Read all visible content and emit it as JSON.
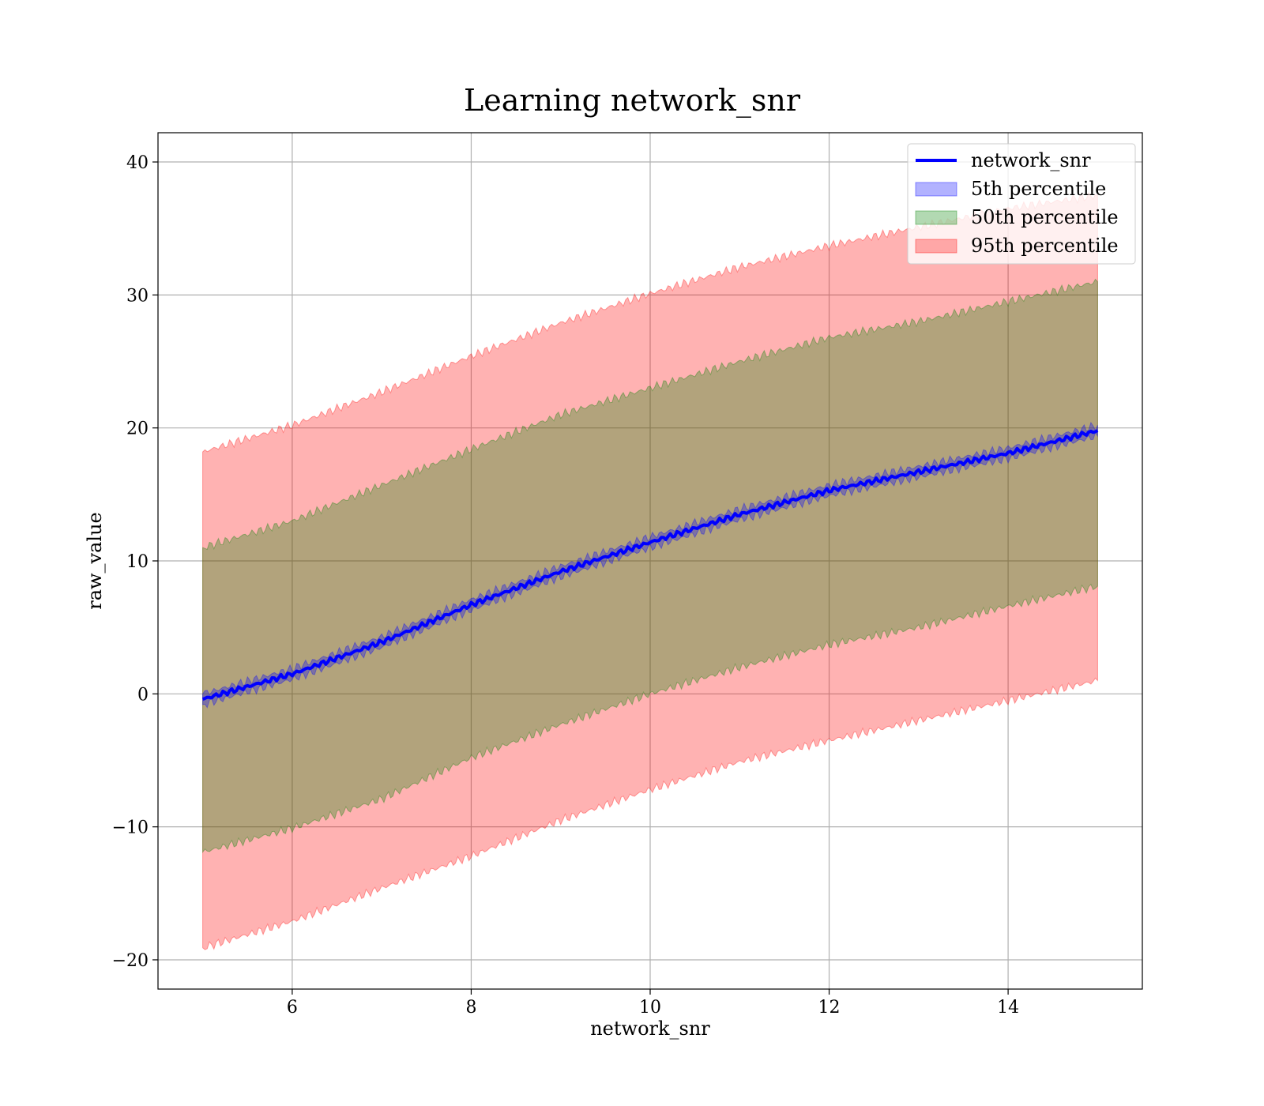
{
  "chart_data": {
    "type": "area",
    "title": "Learning network_snr",
    "xlabel": "network_snr",
    "ylabel": "raw_value",
    "xlim": [
      4.5,
      15.5
    ],
    "ylim": [
      -22.2,
      42.2
    ],
    "xticks": [
      6,
      8,
      10,
      12,
      14
    ],
    "yticks": [
      -20,
      -10,
      0,
      10,
      20,
      30,
      40
    ],
    "grid": true,
    "legend_position": "top-right",
    "x": [
      5,
      6,
      7,
      8,
      9,
      10,
      11,
      12,
      13,
      14,
      15
    ],
    "series": [
      {
        "name": "network_snr",
        "kind": "line",
        "color": "#0000ff",
        "values": [
          -0.4,
          1.5,
          3.9,
          6.7,
          9.2,
          11.4,
          13.5,
          15.3,
          16.7,
          18.1,
          19.8
        ]
      },
      {
        "name": "5th percentile",
        "kind": "band",
        "color": "#0000ff",
        "lower": [
          -0.8,
          1.1,
          3.5,
          6.3,
          8.8,
          11.0,
          13.1,
          14.9,
          16.3,
          17.7,
          19.4
        ],
        "upper": [
          0.0,
          1.9,
          4.3,
          7.1,
          9.6,
          11.8,
          13.9,
          15.7,
          17.1,
          18.5,
          20.2
        ]
      },
      {
        "name": "50th percentile",
        "kind": "band",
        "color": "#008000",
        "lower": [
          -11.9,
          -10.1,
          -7.9,
          -4.8,
          -2.3,
          0.0,
          2.0,
          3.7,
          5.0,
          6.6,
          8.1
        ],
        "upper": [
          11.0,
          13.0,
          15.7,
          18.4,
          21.0,
          23.0,
          25.0,
          26.8,
          28.0,
          29.5,
          31.0
        ]
      },
      {
        "name": "95th percentile",
        "kind": "band",
        "color": "#ff0000",
        "lower": [
          -19.1,
          -17.1,
          -14.6,
          -12.2,
          -9.5,
          -7.2,
          -5.1,
          -3.5,
          -2.0,
          -0.5,
          1.0
        ],
        "upper": [
          18.2,
          20.2,
          22.7,
          25.4,
          27.9,
          30.1,
          32.1,
          33.7,
          35.1,
          36.5,
          37.5
        ]
      }
    ]
  }
}
